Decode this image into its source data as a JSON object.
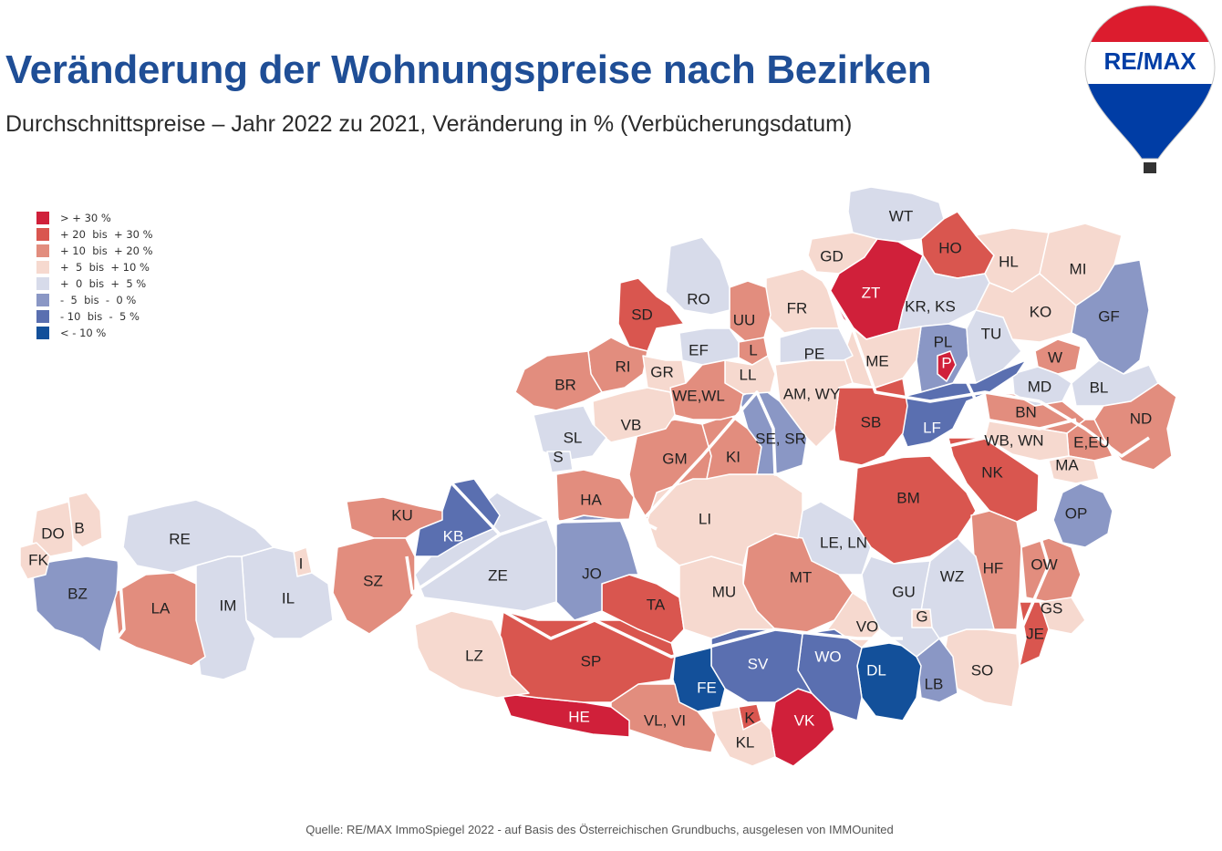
{
  "title": "Veränderung der Wohnungspreise nach Bezirken",
  "subtitle": "Durchschnittspreise – Jahr 2022 zu 2021, Veränderung in % (Verbücherungsdatum)",
  "source": "Quelle: RE/MAX ImmoSpiegel 2022 - auf Basis des Österreichischen Grundbuchs, ausgelesen von IMMOunited",
  "logo": {
    "text": "RE/MAX",
    "colors": {
      "red": "#dc1c2e",
      "blue": "#003da5",
      "white": "#ffffff"
    }
  },
  "legend": [
    {
      "label": "> + 30 %",
      "color": "#d0203a"
    },
    {
      "label": "+ 20  bis  + 30 %",
      "color": "#d9564f"
    },
    {
      "label": "+ 10  bis  + 20 %",
      "color": "#e28d7e"
    },
    {
      "label": "+  5  bis  + 10 %",
      "color": "#f6d9cf"
    },
    {
      "label": "+  0  bis  +  5 %",
      "color": "#d7dbea"
    },
    {
      "label": "-  5  bis  -  0 %",
      "color": "#8a97c5"
    },
    {
      "label": "- 10  bis  -  5 %",
      "color": "#5a6fb0"
    },
    {
      "label": "< - 10 %",
      "color": "#13509a"
    }
  ],
  "districts": [
    {
      "code": "WT",
      "cls": 4
    },
    {
      "code": "HO",
      "cls": 1
    },
    {
      "code": "GD",
      "cls": 3
    },
    {
      "code": "ZT",
      "cls": 0
    },
    {
      "code": "HL",
      "cls": 3
    },
    {
      "code": "MI",
      "cls": 3
    },
    {
      "code": "KR, KS",
      "cls": 4
    },
    {
      "code": "KO",
      "cls": 3
    },
    {
      "code": "GF",
      "cls": 5
    },
    {
      "code": "PL",
      "cls": 5
    },
    {
      "code": "TU",
      "cls": 4
    },
    {
      "code": "P",
      "cls": 0
    },
    {
      "code": "W",
      "cls": 2
    },
    {
      "code": "ME",
      "cls": 3
    },
    {
      "code": "MD",
      "cls": 4
    },
    {
      "code": "BL",
      "cls": 4
    },
    {
      "code": "BN",
      "cls": 2
    },
    {
      "code": "ND",
      "cls": 2
    },
    {
      "code": "E,EU",
      "cls": 2
    },
    {
      "code": "WB, WN",
      "cls": 3
    },
    {
      "code": "MA",
      "cls": 3
    },
    {
      "code": "LF",
      "cls": 6
    },
    {
      "code": "SB",
      "cls": 1
    },
    {
      "code": "NK",
      "cls": 1
    },
    {
      "code": "BM",
      "cls": 1
    },
    {
      "code": "OP",
      "cls": 5
    },
    {
      "code": "HF",
      "cls": 2
    },
    {
      "code": "OW",
      "cls": 2
    },
    {
      "code": "GS",
      "cls": 3
    },
    {
      "code": "JE",
      "cls": 1
    },
    {
      "code": "SO",
      "cls": 3
    },
    {
      "code": "LB",
      "cls": 5
    },
    {
      "code": "DL",
      "cls": 7
    },
    {
      "code": "WZ",
      "cls": 4
    },
    {
      "code": "GU",
      "cls": 4
    },
    {
      "code": "G",
      "cls": 3
    },
    {
      "code": "LE, LN",
      "cls": 4
    },
    {
      "code": "MT",
      "cls": 2
    },
    {
      "code": "VO",
      "cls": 3
    },
    {
      "code": "WO",
      "cls": 6
    },
    {
      "code": "VK",
      "cls": 0
    },
    {
      "code": "SV",
      "cls": 6
    },
    {
      "code": "FE",
      "cls": 7
    },
    {
      "code": "K",
      "cls": 1
    },
    {
      "code": "KL",
      "cls": 3
    },
    {
      "code": "VL, VI",
      "cls": 2
    },
    {
      "code": "HE",
      "cls": 0
    },
    {
      "code": "SP",
      "cls": 1
    },
    {
      "code": "TA",
      "cls": 1
    },
    {
      "code": "MU",
      "cls": 3
    },
    {
      "code": "LI",
      "cls": 3
    },
    {
      "code": "JO",
      "cls": 5
    },
    {
      "code": "HA",
      "cls": 2
    },
    {
      "code": "GM",
      "cls": 2
    },
    {
      "code": "KI",
      "cls": 2
    },
    {
      "code": "SE, SR",
      "cls": 5
    },
    {
      "code": "AM, WY",
      "cls": 3
    },
    {
      "code": "FR",
      "cls": 3
    },
    {
      "code": "PE",
      "cls": 4
    },
    {
      "code": "UU",
      "cls": 2
    },
    {
      "code": "L",
      "cls": 2
    },
    {
      "code": "LL",
      "cls": 3
    },
    {
      "code": "EF",
      "cls": 4
    },
    {
      "code": "RO",
      "cls": 4
    },
    {
      "code": "SD",
      "cls": 1
    },
    {
      "code": "RI",
      "cls": 2
    },
    {
      "code": "BR",
      "cls": 2
    },
    {
      "code": "GR",
      "cls": 3
    },
    {
      "code": "WE,WL",
      "cls": 2
    },
    {
      "code": "VB",
      "cls": 3
    },
    {
      "code": "SL",
      "cls": 4
    },
    {
      "code": "S",
      "cls": 4
    },
    {
      "code": "ZE",
      "cls": 4
    },
    {
      "code": "KB",
      "cls": 6
    },
    {
      "code": "KU",
      "cls": 2
    },
    {
      "code": "SZ",
      "cls": 2
    },
    {
      "code": "I",
      "cls": 3
    },
    {
      "code": "IL",
      "cls": 4
    },
    {
      "code": "IM",
      "cls": 4
    },
    {
      "code": "RE",
      "cls": 4
    },
    {
      "code": "LA",
      "cls": 2
    },
    {
      "code": "LZ",
      "cls": 3
    },
    {
      "code": "BZ",
      "cls": 5
    },
    {
      "code": "DO",
      "cls": 3
    },
    {
      "code": "B",
      "cls": 3
    },
    {
      "code": "FK",
      "cls": 3
    }
  ]
}
